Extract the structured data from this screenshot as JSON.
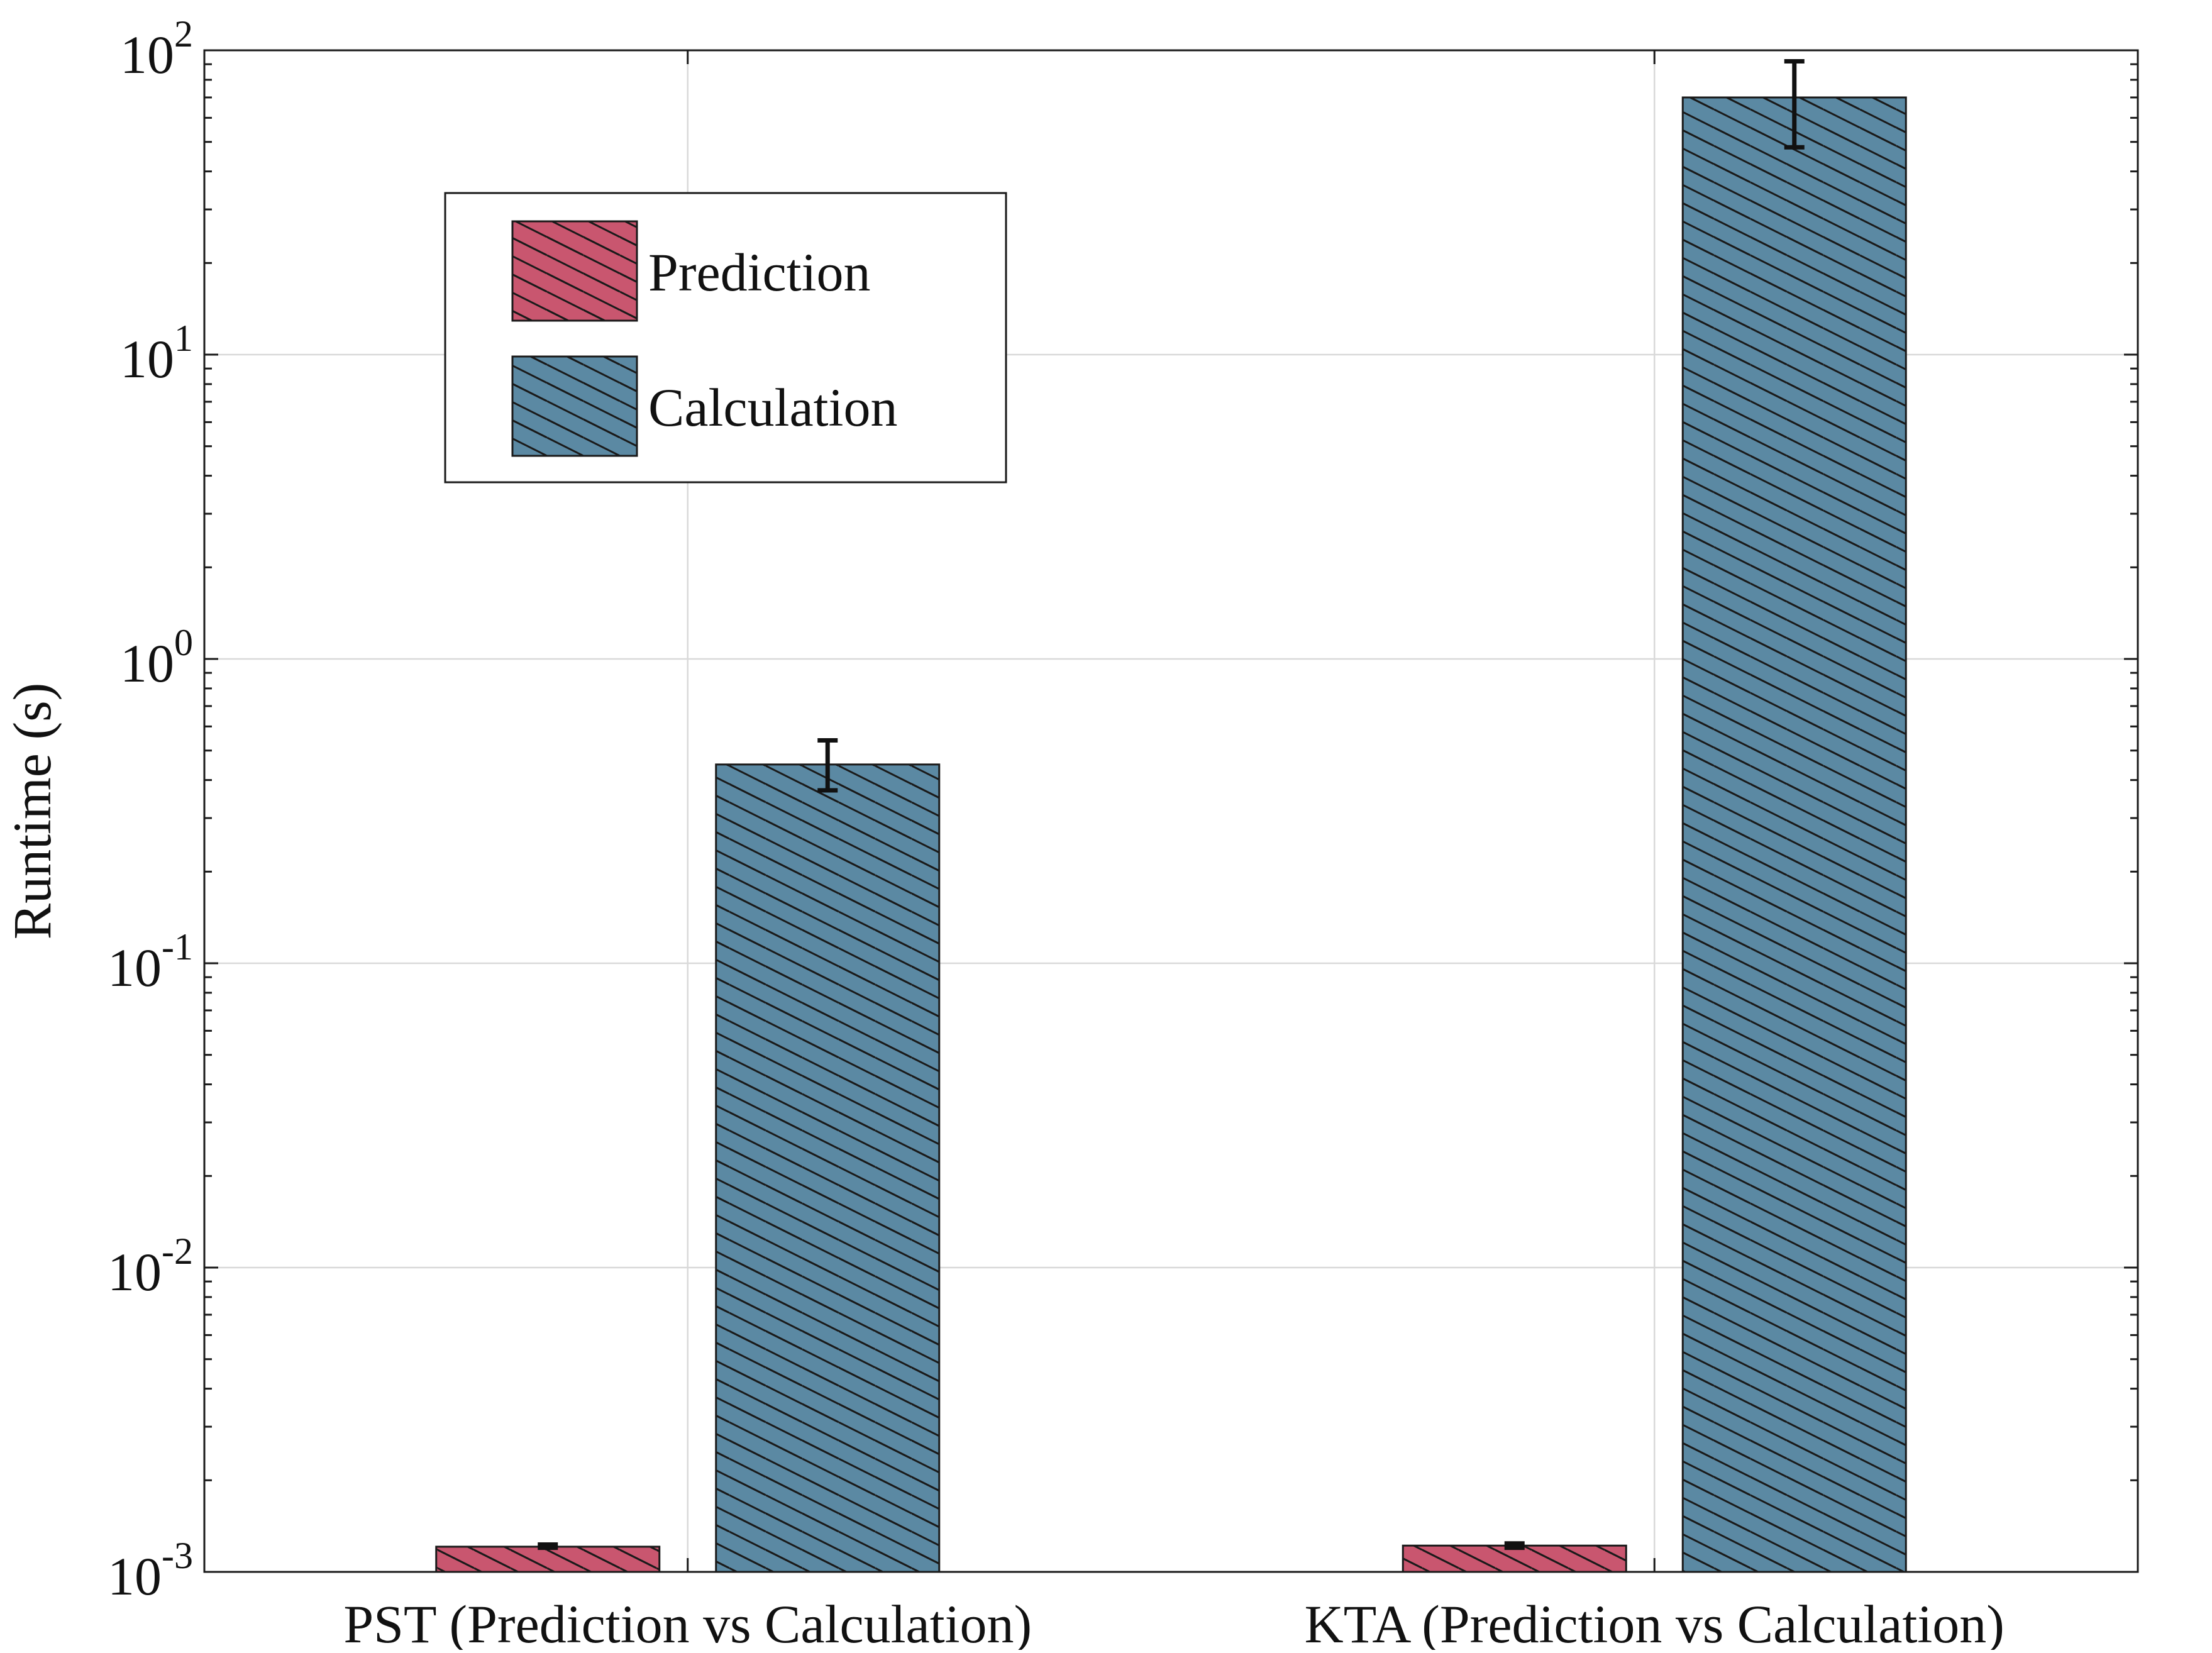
{
  "chart_data": {
    "type": "bar",
    "ylabel": "Runtime (s)",
    "xlabel": "",
    "yscale": "log",
    "ylim": [
      0.001,
      100
    ],
    "yticks": [
      {
        "value": 0.001,
        "base": "10",
        "exp": "-3"
      },
      {
        "value": 0.01,
        "base": "10",
        "exp": "-2"
      },
      {
        "value": 0.1,
        "base": "10",
        "exp": "-1"
      },
      {
        "value": 1,
        "base": "10",
        "exp": "0"
      },
      {
        "value": 10,
        "base": "10",
        "exp": "1"
      },
      {
        "value": 100,
        "base": "10",
        "exp": "2"
      }
    ],
    "categories": [
      "PST (Prediction vs Calculation)",
      "KTA (Prediction vs Calculation)"
    ],
    "series": [
      {
        "name": "Prediction",
        "color": "#c9566f",
        "values": [
          0.00121,
          0.00122
        ],
        "error_low": [
          0.0012,
          0.0012
        ],
        "error_high": [
          0.00123,
          0.00124
        ]
      },
      {
        "name": "Calculation",
        "color": "#5b89a3",
        "values": [
          0.45,
          70
        ],
        "error_low": [
          0.37,
          48
        ],
        "error_high": [
          0.54,
          92
        ]
      }
    ],
    "legend": {
      "position": "upper-left",
      "entries": [
        "Prediction",
        "Calculation"
      ]
    },
    "grid": true,
    "hatch": "diagonal"
  }
}
